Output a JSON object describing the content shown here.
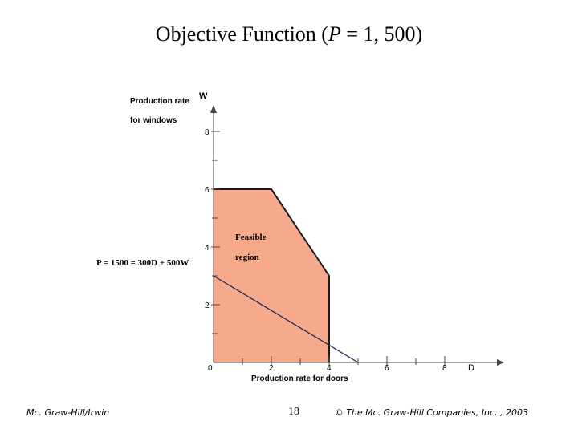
{
  "slide": {
    "title_prefix": "Objective Function (",
    "title_var": "P",
    "title_suffix": " = 1, 500)"
  },
  "chart_data": {
    "type": "area",
    "ylabel_line1": "Production rate",
    "ylabel_line2": "for windows",
    "xlabel": "Production rate for doors",
    "x_axis_letter": "D",
    "y_axis_letter": "W",
    "xlim": [
      0,
      10
    ],
    "ylim": [
      0,
      9
    ],
    "x_major_ticks": [
      0,
      2,
      4,
      6,
      8
    ],
    "y_major_ticks": [
      0,
      2,
      4,
      6,
      8
    ],
    "x_tick_labels": [
      "0",
      "2",
      "4",
      "6",
      "8"
    ],
    "y_tick_labels": [
      "2",
      "4",
      "6",
      "8"
    ],
    "feasible_region": {
      "label_line1": "Feasible",
      "label_line2": "region",
      "color": "#f7a98c",
      "vertices": [
        [
          0,
          0
        ],
        [
          0,
          6
        ],
        [
          2,
          6
        ],
        [
          4,
          3
        ],
        [
          4,
          0
        ]
      ]
    },
    "objective_line": {
      "label": "P = 1500 = 300D + 500W",
      "points": [
        [
          0,
          3
        ],
        [
          5,
          0
        ]
      ]
    }
  },
  "footer": {
    "left": "Mc. Graw-Hill/Irwin",
    "page": "18",
    "right": "© The Mc. Graw-Hill Companies, Inc. , 2003"
  }
}
